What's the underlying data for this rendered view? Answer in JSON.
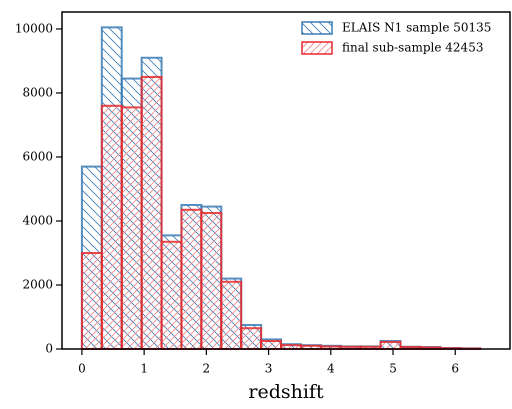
{
  "chart_data": {
    "type": "histogram",
    "xlabel": "redshift",
    "bins": [
      0,
      0.32,
      0.64,
      0.96,
      1.28,
      1.6,
      1.92,
      2.24,
      2.56,
      2.88,
      3.2,
      3.52,
      3.84,
      4.16,
      4.48,
      4.8,
      5.12,
      5.44,
      5.76,
      6.08,
      6.4
    ],
    "series": [
      {
        "name": "ELAIS N1 sample 50135",
        "color": "#3a7bb5",
        "hatch": "back",
        "values": [
          5700,
          10050,
          8450,
          9100,
          3550,
          4500,
          4450,
          2200,
          750,
          300,
          150,
          120,
          100,
          80,
          80,
          250,
          70,
          60,
          30,
          20
        ]
      },
      {
        "name": "final sub-sample 42453",
        "color": "#e8292b",
        "hatch": "forward",
        "values": [
          3000,
          7600,
          7550,
          8500,
          3350,
          4350,
          4250,
          2100,
          650,
          250,
          120,
          100,
          80,
          70,
          70,
          220,
          60,
          50,
          25,
          15
        ]
      }
    ],
    "xlim": [
      -0.32,
      6.88
    ],
    "ylim": [
      0,
      10530
    ],
    "xticks": [
      0,
      1,
      2,
      3,
      4,
      5,
      6
    ],
    "yticks": [
      0,
      2000,
      4000,
      6000,
      8000,
      10000
    ],
    "legend": "upper right"
  }
}
